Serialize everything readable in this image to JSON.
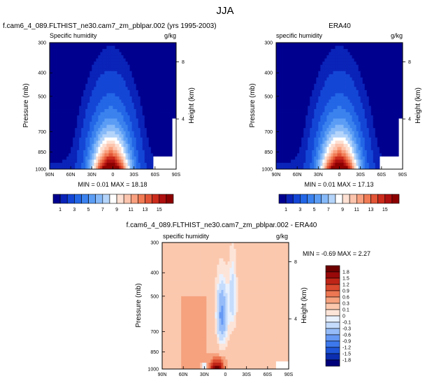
{
  "figure_title": "JJA",
  "chart_data": [
    {
      "type": "heatmap",
      "panel": "model",
      "title": "f.cam6_4_089.FLTHIST_ne30.cam7_zm_pblpar.002 (yrs 1995-2003)",
      "subtitle_left": "Specific humidity",
      "subtitle_right": "g/kg",
      "xlabel": "",
      "ylabel": "Pressure (mb)",
      "ylabel_right": "Height (km)",
      "x_ticks": [
        "90N",
        "60N",
        "30N",
        "0",
        "30S",
        "60S",
        "90S"
      ],
      "y_ticks": [
        "300",
        "400",
        "500",
        "700",
        "850",
        "1000"
      ],
      "y_ticks_right": [
        "8",
        "4"
      ],
      "stats": "MIN =  0.01  MAX = 18.18",
      "colorbar_labels": [
        "1",
        "3",
        "5",
        "7",
        "9",
        "11",
        "13",
        "15"
      ],
      "colorbar_levels": [
        0.5,
        1,
        2,
        3,
        4,
        5,
        6,
        7,
        8,
        9,
        10,
        11,
        12,
        13,
        14,
        15
      ]
    },
    {
      "type": "heatmap",
      "panel": "obs",
      "title": "ERA40",
      "subtitle_left": "specific humidity",
      "subtitle_right": "g/kg",
      "ylabel": "Pressure (mb)",
      "ylabel_right": "Height (km)",
      "x_ticks": [
        "90N",
        "60N",
        "30N",
        "0",
        "30S",
        "60S",
        "90S"
      ],
      "y_ticks": [
        "300",
        "400",
        "500",
        "700",
        "850",
        "1000"
      ],
      "y_ticks_right": [
        "8",
        "4"
      ],
      "stats": "MIN =  0.01  MAX = 17.13",
      "colorbar_labels": [
        "1",
        "3",
        "5",
        "7",
        "9",
        "11",
        "13",
        "15"
      ],
      "colorbar_levels": [
        0.5,
        1,
        2,
        3,
        4,
        5,
        6,
        7,
        8,
        9,
        10,
        11,
        12,
        13,
        14,
        15
      ]
    },
    {
      "type": "heatmap",
      "panel": "difference",
      "title": "f.cam6_4_089.FLTHIST_ne30.cam7_zm_pblpar.002 - ERA40",
      "subtitle_left": "specific humidity",
      "subtitle_right": "g/kg",
      "ylabel": "Pressure (mb)",
      "ylabel_right": "Height (km)",
      "x_ticks": [
        "90N",
        "60N",
        "30N",
        "0",
        "30S",
        "60S",
        "90S"
      ],
      "y_ticks": [
        "300",
        "400",
        "500",
        "700",
        "850",
        "1000"
      ],
      "y_ticks_right": [
        "8",
        "4"
      ],
      "stats": "MIN = -0.69  MAX =  2.27",
      "colorbar_labels": [
        "1.8",
        "1.5",
        "1.2",
        "0.9",
        "0.6",
        "0.3",
        "0.1",
        "0",
        "-0.1",
        "-0.3",
        "-0.6",
        "-0.9",
        "-1.2",
        "-1.5",
        "-1.8"
      ],
      "colorbar_levels": [
        -1.8,
        -1.5,
        -1.2,
        -0.9,
        -0.6,
        -0.3,
        -0.1,
        0,
        0.1,
        0.3,
        0.6,
        0.9,
        1.2,
        1.5,
        1.8
      ]
    }
  ],
  "colors": {
    "seq": [
      "#00008f",
      "#0a23b8",
      "#1446d6",
      "#2366e6",
      "#3b82ee",
      "#5b9df5",
      "#86b9f8",
      "#b4d4fa",
      "#ffffff",
      "#fde0d2",
      "#fcc4ad",
      "#f8a07f",
      "#f07b55",
      "#e25536",
      "#cc2c1c",
      "#ae0f0f",
      "#8c0000"
    ],
    "div": [
      "#00007a",
      "#0b2db0",
      "#1e55d8",
      "#3d79ec",
      "#6699f4",
      "#95bcf8",
      "#c6dcfc",
      "#e9f1fe",
      "#fde4d8",
      "#fbc8ae",
      "#f6a27e",
      "#ec7752",
      "#da4a2e",
      "#bf2517",
      "#990909",
      "#6e0000"
    ]
  }
}
